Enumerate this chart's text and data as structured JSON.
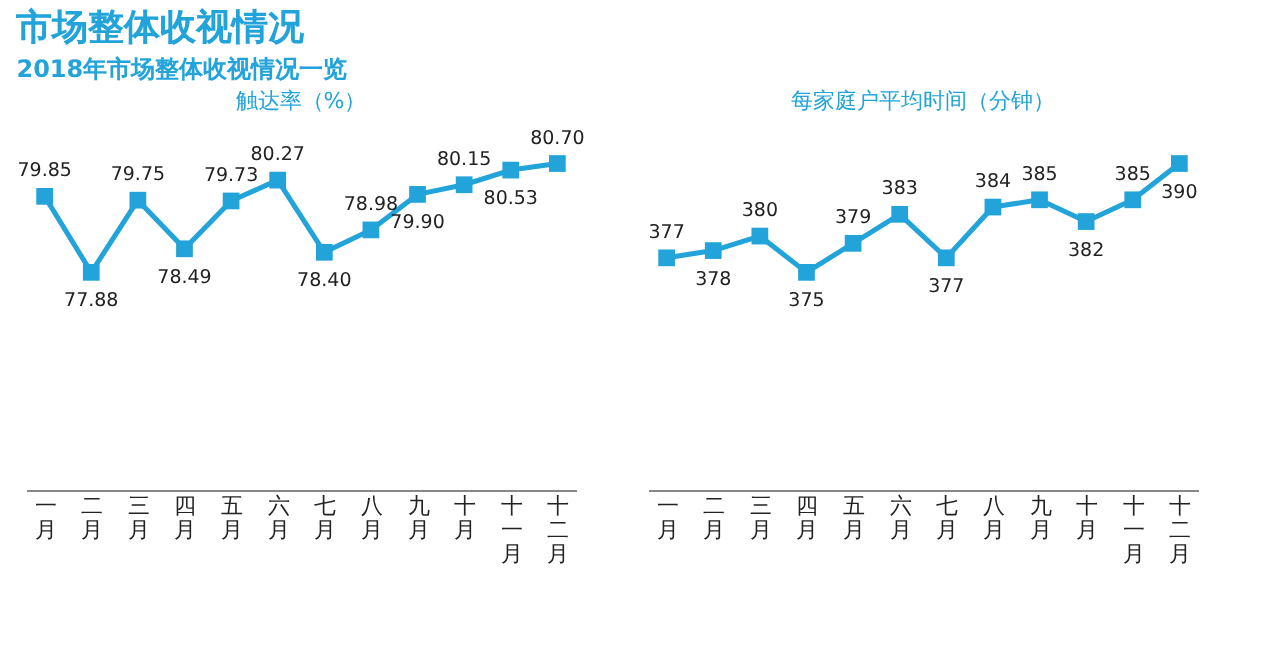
{
  "chart_data": [
    {
      "type": "line",
      "title": "触达率（%）",
      "annotations": [
        "市场整体收视情况",
        "2018年市场整体收视情况一览"
      ],
      "categories": [
        "一月",
        "二月",
        "三月",
        "四月",
        "五月",
        "六月",
        "七月",
        "八月",
        "九月",
        "十月",
        "十一月",
        "十二月"
      ],
      "series": [
        {
          "color": "#22a3d9",
          "values": [
            79.85,
            77.88,
            79.75,
            78.49,
            79.73,
            80.27,
            78.4,
            78.98,
            79.9,
            80.15,
            80.53,
            80.7
          ],
          "value_labels": [
            "79.85",
            "77.88",
            "79.75",
            "78.49",
            "79.73",
            "80.27",
            "78.40",
            "78.98",
            "79.90",
            "80.15",
            "80.53",
            "80.70"
          ]
        }
      ],
      "legend": false,
      "marker": "square",
      "line_style": "solid",
      "grid": false,
      "tick_labels": "x"
    },
    {
      "type": "line",
      "title": "每家庭户平均时间（分钟）",
      "categories": [
        "一月",
        "二月",
        "三月",
        "四月",
        "五月",
        "六月",
        "七月",
        "八月",
        "九月",
        "十月",
        "十一月",
        "十二月"
      ],
      "series": [
        {
          "color": "#22a3d9",
          "values": [
            377,
            378,
            380,
            375,
            379,
            383,
            377,
            384,
            385,
            382,
            385,
            390
          ]
        }
      ],
      "data_labels": true,
      "legend": false,
      "marker": "square",
      "line_style": "solid",
      "grid": false,
      "tick_labels": "x"
    }
  ]
}
